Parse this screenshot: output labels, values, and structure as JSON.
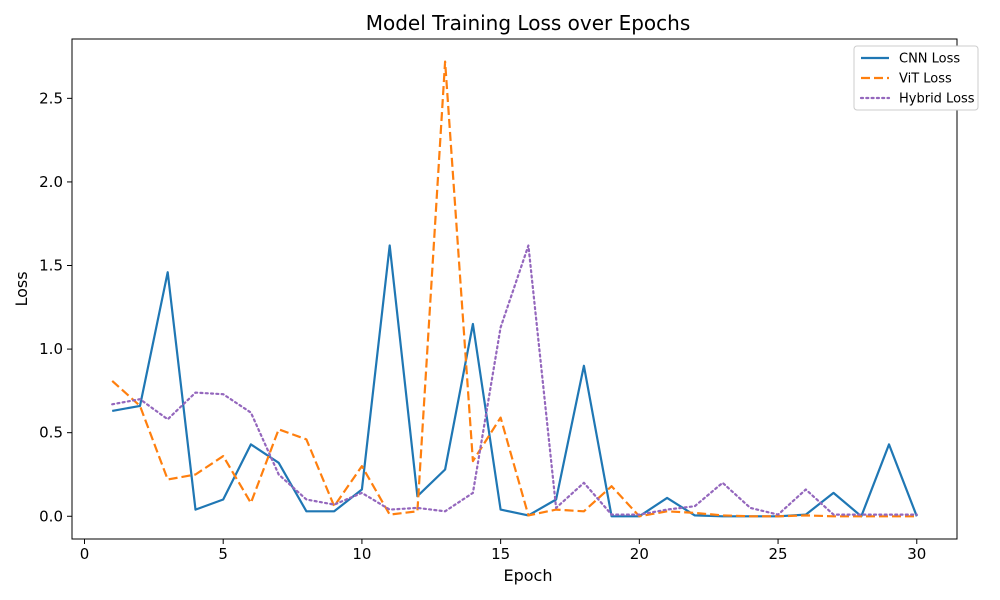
{
  "chart_data": {
    "type": "line",
    "title": "Model Training Loss over Epochs",
    "xlabel": "Epoch",
    "ylabel": "Loss",
    "xlim": [
      -0.45,
      31.45
    ],
    "ylim": [
      -0.136,
      2.855
    ],
    "xticks": [
      0,
      5,
      10,
      15,
      20,
      25,
      30
    ],
    "xtick_labels": [
      "0",
      "5",
      "10",
      "15",
      "20",
      "25",
      "30"
    ],
    "yticks": [
      0.0,
      0.5,
      1.0,
      1.5,
      2.0,
      2.5
    ],
    "ytick_labels": [
      "0.0",
      "0.5",
      "1.0",
      "1.5",
      "2.0",
      "2.5"
    ],
    "grid": false,
    "legend_position": "top-right",
    "x": [
      1,
      2,
      3,
      4,
      5,
      6,
      7,
      8,
      9,
      10,
      11,
      12,
      13,
      14,
      15,
      16,
      17,
      18,
      19,
      20,
      21,
      22,
      23,
      24,
      25,
      26,
      27,
      28,
      29,
      30
    ],
    "series": [
      {
        "name": "CNN Loss",
        "color": "#1f77b4",
        "style": "solid",
        "values": [
          0.63,
          0.66,
          1.46,
          0.04,
          0.1,
          0.43,
          0.32,
          0.03,
          0.03,
          0.16,
          1.62,
          0.12,
          0.28,
          1.15,
          0.04,
          0.005,
          0.1,
          0.9,
          0.0,
          0.0,
          0.11,
          0.005,
          0.0,
          0.0,
          0.0,
          0.01,
          0.14,
          0.0,
          0.43,
          0.0
        ]
      },
      {
        "name": "ViT Loss",
        "color": "#ff7f0e",
        "style": "dashed",
        "values": [
          0.81,
          0.66,
          0.22,
          0.25,
          0.36,
          0.08,
          0.52,
          0.46,
          0.06,
          0.3,
          0.01,
          0.03,
          2.72,
          0.33,
          0.59,
          0.005,
          0.04,
          0.03,
          0.18,
          0.0,
          0.03,
          0.02,
          0.005,
          0.0,
          0.0,
          0.005,
          0.0,
          0.0,
          0.0,
          0.0
        ]
      },
      {
        "name": "Hybrid Loss",
        "color": "#9467bd",
        "style": "dotted",
        "values": [
          0.67,
          0.7,
          0.58,
          0.74,
          0.73,
          0.62,
          0.25,
          0.1,
          0.07,
          0.14,
          0.04,
          0.05,
          0.03,
          0.14,
          1.13,
          1.62,
          0.05,
          0.2,
          0.01,
          0.01,
          0.04,
          0.06,
          0.2,
          0.05,
          0.01,
          0.16,
          0.01,
          0.01,
          0.01,
          0.01
        ]
      }
    ]
  }
}
